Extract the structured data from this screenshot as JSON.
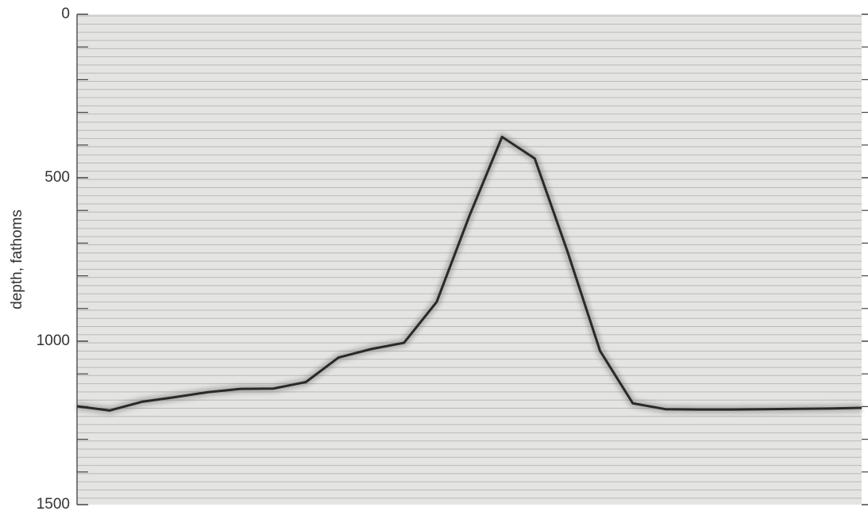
{
  "chart_data": {
    "type": "line",
    "y_label": "depth, fathoms",
    "categories": [
      null,
      null,
      null,
      null,
      null,
      null,
      null,
      null,
      null,
      null,
      null,
      null,
      null,
      null,
      null,
      null,
      null,
      null,
      null,
      null,
      null,
      null,
      null,
      null,
      null
    ],
    "series": [
      {
        "color": "#2a2a2a",
        "values": [
          1199,
          1212,
          1185,
          1171,
          1156,
          1146,
          1145,
          1125,
          1050,
          1024,
          1005,
          880,
          617,
          375,
          441,
          725,
          1030,
          1190,
          1208,
          1209,
          1209,
          1208,
          1207,
          1206,
          1204
        ]
      }
    ],
    "ylim": [
      0,
      1500
    ],
    "y_inverted": true,
    "yticks": [
      0,
      500,
      1000,
      1500
    ],
    "yminorticks": [
      100,
      200,
      300,
      400,
      600,
      700,
      800,
      900,
      1100,
      1200,
      1300,
      1400
    ]
  }
}
